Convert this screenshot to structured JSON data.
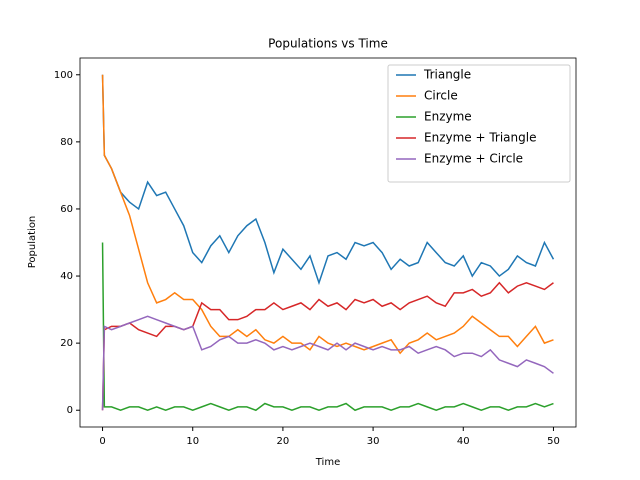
{
  "chart_data": {
    "type": "line",
    "title": "Populations vs Time",
    "xlabel": "Time",
    "ylabel": "Population",
    "x": [
      0,
      0.2,
      1,
      2,
      3,
      4,
      5,
      6,
      7,
      8,
      9,
      10,
      11,
      12,
      13,
      14,
      15,
      16,
      17,
      18,
      19,
      20,
      21,
      22,
      23,
      24,
      25,
      26,
      27,
      28,
      29,
      30,
      31,
      32,
      33,
      34,
      35,
      36,
      37,
      38,
      39,
      40,
      41,
      42,
      43,
      44,
      45,
      46,
      47,
      48,
      49,
      50
    ],
    "series": [
      {
        "name": "Triangle",
        "color": "#1f77b4",
        "values": [
          100,
          76,
          72,
          65,
          62,
          60,
          68,
          64,
          65,
          60,
          55,
          47,
          44,
          49,
          52,
          47,
          52,
          55,
          57,
          50,
          41,
          48,
          45,
          42,
          46,
          38,
          46,
          47,
          45,
          50,
          49,
          50,
          47,
          42,
          45,
          43,
          44,
          50,
          47,
          44,
          43,
          46,
          40,
          44,
          43,
          40,
          42,
          46,
          44,
          43,
          50,
          45
        ]
      },
      {
        "name": "Circle",
        "color": "#ff7f0e",
        "values": [
          100,
          76,
          72,
          65,
          58,
          48,
          38,
          32,
          33,
          35,
          33,
          33,
          30,
          25,
          22,
          22,
          24,
          22,
          24,
          21,
          20,
          22,
          20,
          20,
          18,
          22,
          20,
          19,
          20,
          19,
          18,
          19,
          20,
          21,
          17,
          20,
          21,
          23,
          21,
          22,
          23,
          25,
          28,
          26,
          24,
          22,
          22,
          19,
          22,
          25,
          20,
          21
        ]
      },
      {
        "name": "Enzyme",
        "color": "#2ca02c",
        "values": [
          50,
          1,
          1,
          0,
          1,
          1,
          0,
          1,
          0,
          1,
          1,
          0,
          1,
          2,
          1,
          0,
          1,
          1,
          0,
          2,
          1,
          1,
          0,
          1,
          1,
          0,
          1,
          1,
          2,
          0,
          1,
          1,
          1,
          0,
          1,
          1,
          2,
          1,
          0,
          1,
          1,
          2,
          1,
          0,
          1,
          1,
          0,
          1,
          1,
          2,
          1,
          2
        ]
      },
      {
        "name": "Enzyme + Triangle",
        "color": "#d62728",
        "values": [
          0,
          24,
          25,
          25,
          26,
          24,
          23,
          22,
          25,
          25,
          24,
          25,
          32,
          30,
          30,
          27,
          27,
          28,
          30,
          30,
          32,
          30,
          31,
          32,
          30,
          33,
          31,
          32,
          30,
          33,
          32,
          33,
          31,
          32,
          30,
          32,
          33,
          34,
          32,
          31,
          35,
          35,
          36,
          34,
          35,
          38,
          35,
          37,
          38,
          37,
          36,
          38
        ]
      },
      {
        "name": "Enzyme + Circle",
        "color": "#9467bd",
        "values": [
          0,
          25,
          24,
          25,
          26,
          27,
          28,
          27,
          26,
          25,
          24,
          25,
          18,
          19,
          21,
          22,
          20,
          20,
          21,
          20,
          18,
          19,
          18,
          19,
          20,
          19,
          18,
          20,
          18,
          20,
          19,
          18,
          19,
          18,
          18,
          19,
          17,
          18,
          19,
          18,
          16,
          17,
          17,
          16,
          18,
          15,
          14,
          13,
          15,
          14,
          13,
          11
        ]
      }
    ],
    "xlim": [
      -2.5,
      52.5
    ],
    "ylim": [
      -5,
      105
    ],
    "xticks": [
      0,
      10,
      20,
      30,
      40,
      50
    ],
    "yticks": [
      0,
      20,
      40,
      60,
      80,
      100
    ],
    "legend": "upper right"
  }
}
